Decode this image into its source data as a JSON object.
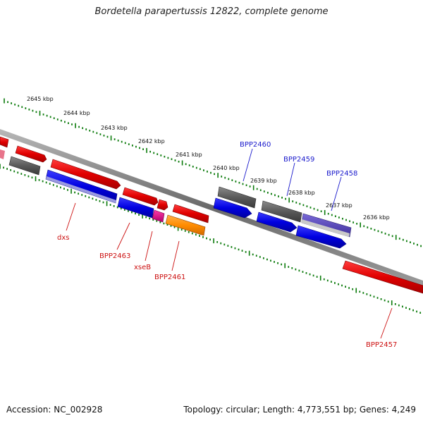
{
  "title": "Bordetella parapertussis 12822, complete genome",
  "footer": {
    "accession": "Accession: NC_002928",
    "summary": "Topology: circular; Length: 4,773,551 bp; Genes: 4,249"
  },
  "scale_labels": [
    "2645 kbp",
    "2644 kbp",
    "2643 kbp",
    "2642 kbp",
    "2641 kbp",
    "2640 kbp",
    "2639 kbp",
    "2638 kbp",
    "2637 kbp",
    "2636 kbp"
  ],
  "gene_labels": {
    "BPP2460": "BPP2460",
    "BPP2459": "BPP2459",
    "BPP2458": "BPP2458",
    "dxs": "dxs",
    "BPP2463": "BPP2463",
    "xseB": "xseB",
    "BPP2461": "BPP2461",
    "BPP2457": "BPP2457"
  },
  "colors": {
    "red": "#e60000",
    "blue": "#0000dd",
    "grey": "#555555",
    "orange": "#ff8c00",
    "magenta": "#e0008c",
    "tick_green": "#0a7a0a"
  }
}
